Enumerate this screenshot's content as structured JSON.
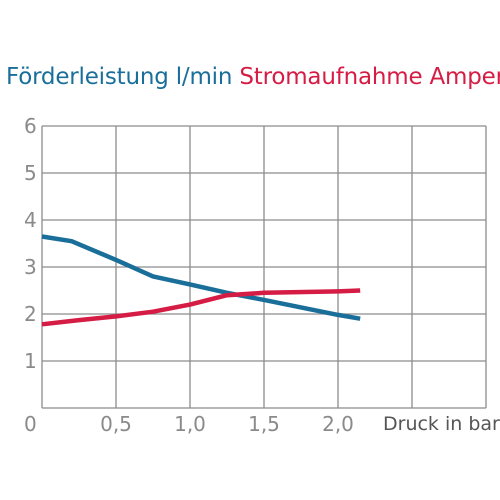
{
  "chart_data": {
    "type": "line",
    "title_parts": [
      {
        "text": "Förderleistung l/min",
        "color": "#1a6f9a"
      },
      {
        "text": "Stromaufnahme Ampere",
        "color": "#d51c45"
      }
    ],
    "xlabel": "Druck in bar",
    "x_ticks": [
      "0",
      "0,5",
      "1,0",
      "1,5",
      "2,0"
    ],
    "y_ticks": [
      "1",
      "2",
      "3",
      "4",
      "5",
      "6"
    ],
    "y_zero_label": "0",
    "xlim": [
      0,
      3
    ],
    "ylim": [
      0,
      6
    ],
    "grid": true,
    "series": [
      {
        "name": "Förderleistung l/min",
        "color": "#1a6f9a",
        "points": [
          [
            0,
            3.65
          ],
          [
            0.2,
            3.55
          ],
          [
            0.5,
            3.15
          ],
          [
            0.75,
            2.8
          ],
          [
            1.0,
            2.63
          ],
          [
            1.25,
            2.45
          ],
          [
            1.5,
            2.3
          ],
          [
            2.0,
            1.98
          ],
          [
            2.15,
            1.9
          ]
        ]
      },
      {
        "name": "Stromaufnahme Ampere",
        "color": "#d51c45",
        "points": [
          [
            0,
            1.78
          ],
          [
            0.25,
            1.87
          ],
          [
            0.5,
            1.95
          ],
          [
            0.75,
            2.05
          ],
          [
            1.0,
            2.2
          ],
          [
            1.25,
            2.4
          ],
          [
            1.5,
            2.45
          ],
          [
            2.0,
            2.48
          ],
          [
            2.15,
            2.5
          ]
        ]
      }
    ]
  }
}
